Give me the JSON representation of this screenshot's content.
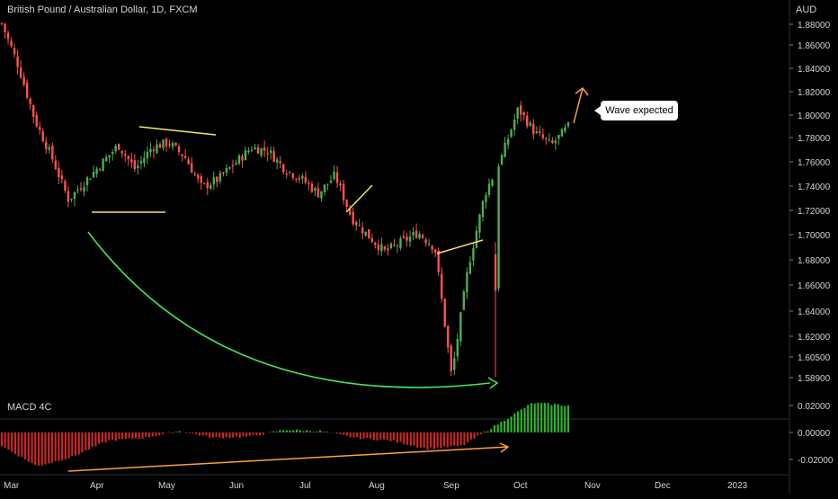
{
  "header": {
    "title": "British Pound / Australian Dollar, 1D, FXCM",
    "currency": "AUD"
  },
  "annotation": {
    "callout": "Wave expected"
  },
  "colors": {
    "up": "#26a69a",
    "up_bright": "#4caf50",
    "down": "#ef5350",
    "down_bright": "#ff5252",
    "yellow": "#f5e663",
    "green": "#47e55a",
    "orange": "#ffa040",
    "macd_pos": "#2fb12f",
    "macd_neg": "#c62828"
  },
  "chart_data": [
    {
      "type": "candlestick",
      "title": "British Pound / Australian Dollar, 1D, FXCM",
      "y_axis_ticks": [
        "1.88000",
        "1.86000",
        "1.84000",
        "1.82000",
        "1.80000",
        "1.78000",
        "1.76000",
        "1.74000",
        "1.72000",
        "1.70000",
        "1.68000",
        "1.66000",
        "1.64000",
        "1.62000",
        "1.60500",
        "1.58900"
      ],
      "x_axis_ticks": [
        "Mar",
        "Apr",
        "May",
        "Jun",
        "Jul",
        "Aug",
        "Sep",
        "Oct",
        "Nov",
        "Dec",
        "2023"
      ],
      "ylim": [
        1.575,
        1.895
      ],
      "close_path": [
        [
          "Mar",
          1.88
        ],
        [
          "Mar",
          1.845
        ],
        [
          "Mar",
          1.8
        ],
        [
          "Mar",
          1.77
        ],
        [
          "Apr",
          1.735
        ],
        [
          "Apr",
          1.75
        ],
        [
          "Apr",
          1.765
        ],
        [
          "May",
          1.78
        ],
        [
          "May",
          1.76
        ],
        [
          "May",
          1.778
        ],
        [
          "May",
          1.782
        ],
        [
          "Jun",
          1.77
        ],
        [
          "Jun",
          1.745
        ],
        [
          "Jun",
          1.752
        ],
        [
          "Jun",
          1.765
        ],
        [
          "Jul",
          1.778
        ],
        [
          "Jul",
          1.775
        ],
        [
          "Jul",
          1.76
        ],
        [
          "Jul",
          1.752
        ],
        [
          "Aug",
          1.74
        ],
        [
          "Aug",
          1.755
        ],
        [
          "Aug",
          1.72
        ],
        [
          "Aug",
          1.705
        ],
        [
          "Sep",
          1.692
        ],
        [
          "Sep",
          1.7
        ],
        [
          "Sep",
          1.708
        ],
        [
          "Sep",
          1.695
        ],
        [
          "Sep",
          1.589
        ],
        [
          "Oct",
          1.68
        ],
        [
          "Oct",
          1.74
        ],
        [
          "Oct",
          1.77
        ],
        [
          "Oct",
          1.81
        ],
        [
          "Oct",
          1.79
        ],
        [
          "Oct",
          1.78
        ],
        [
          "Oct",
          1.795
        ]
      ],
      "extreme_low": 1.589
    },
    {
      "type": "histogram",
      "title": "MACD 4C",
      "y_axis_ticks": [
        "0.02000",
        "0.00000",
        "-0.02000"
      ],
      "ylim": [
        -0.03,
        0.025
      ],
      "profile": [
        [
          "Mar",
          -0.01
        ],
        [
          "Mar",
          -0.025
        ],
        [
          "Apr",
          -0.018
        ],
        [
          "Apr",
          -0.006
        ],
        [
          "May",
          -0.004
        ],
        [
          "May",
          0.001
        ],
        [
          "Jun",
          -0.004
        ],
        [
          "Jun",
          -0.003
        ],
        [
          "Jul",
          0.002
        ],
        [
          "Jul",
          0.001
        ],
        [
          "Aug",
          -0.004
        ],
        [
          "Aug",
          -0.006
        ],
        [
          "Sep",
          -0.012
        ],
        [
          "Sep",
          -0.01
        ],
        [
          "Oct",
          0.006
        ],
        [
          "Oct",
          0.022
        ],
        [
          "Oct",
          0.02
        ]
      ]
    }
  ]
}
